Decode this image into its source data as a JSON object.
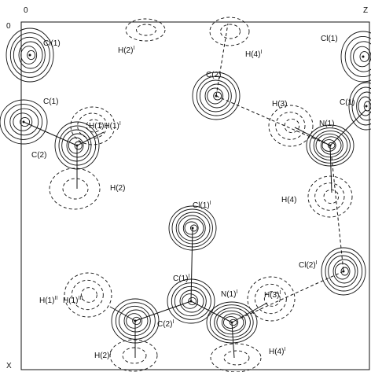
{
  "axes": {
    "origin_top": "0",
    "z": "Z",
    "origin_left": "0",
    "x": "X"
  },
  "labels": [
    {
      "text": "Cl(1)"
    },
    {
      "text": "H(2)",
      "sup": "I"
    },
    {
      "text": "H(4)",
      "sup": "I"
    },
    {
      "text": "C(2)"
    },
    {
      "text": "Cl(1)"
    },
    {
      "text": "C(1)"
    },
    {
      "text": "H(3)"
    },
    {
      "text": "C(1)"
    },
    {
      "text": "N(1)"
    },
    {
      "text": "H(1)H(1)",
      "sup": "I"
    },
    {
      "text": "C(2)"
    },
    {
      "text": "H(2)"
    },
    {
      "text": "H(4)"
    },
    {
      "text": "Cl(1)",
      "sup": "I"
    },
    {
      "text": "Cl(2)",
      "sup": "I"
    },
    {
      "text": "C(1)",
      "sup": "I"
    },
    {
      "text": "H(1)",
      "sup": "II"
    },
    {
      "text": "H(1)",
      "sup": "III"
    },
    {
      "text": "H(3)",
      "sup": "I"
    },
    {
      "text": "N(1)",
      "sup": "I"
    },
    {
      "text": "C(2)",
      "sup": "I"
    },
    {
      "text": "H(2)",
      "sup": "I"
    },
    {
      "text": "H(4)",
      "sup": "I"
    }
  ]
}
